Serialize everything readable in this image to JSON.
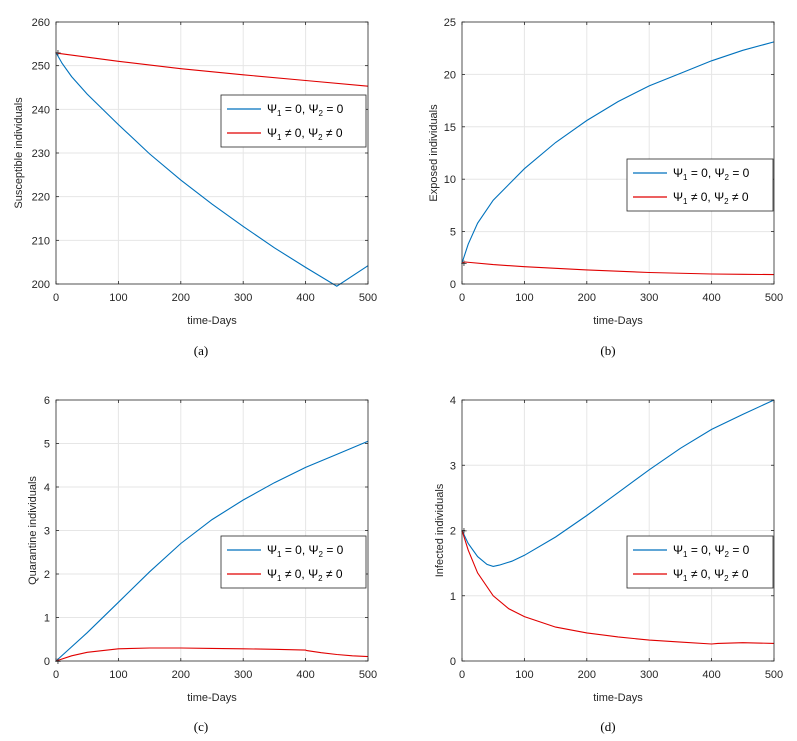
{
  "colors": {
    "series_blue": "#0072bd",
    "series_red": "#e00000",
    "grid": "#e6e6e6",
    "axis": "#262626"
  },
  "legend_entries": [
    {
      "psi": "Ψ",
      "s1": "1",
      "rel1": "= 0",
      "s2": "2",
      "rel2": "= 0",
      "color": "#0072bd"
    },
    {
      "psi": "Ψ",
      "s1": "1",
      "rel1": "≠ 0",
      "s2": "2",
      "rel2": "≠ 0",
      "color": "#e00000"
    }
  ],
  "chart_data": [
    {
      "id": "a",
      "type": "line",
      "caption": "(a)",
      "xlabel": "time-Days",
      "ylabel": "Susceptible individuals",
      "xlim": [
        0,
        500
      ],
      "ylim": [
        200,
        260
      ],
      "xticks": [
        0,
        100,
        200,
        300,
        400,
        500
      ],
      "yticks": [
        200,
        210,
        220,
        230,
        240,
        250,
        260
      ],
      "grid": true,
      "legend_position": "center-right",
      "series": [
        {
          "name": "Ψ1 = 0, Ψ2 = 0",
          "color": "#0072bd",
          "x": [
            0,
            10,
            25,
            50,
            100,
            150,
            200,
            250,
            300,
            350,
            400,
            450,
            500
          ],
          "y": [
            253,
            250.5,
            247.5,
            243.5,
            236.5,
            229.8,
            223.8,
            218.3,
            213.2,
            208.3,
            203.8,
            199.5,
            204.2
          ]
        },
        {
          "name": "Ψ1 ≠ 0, Ψ2 ≠ 0",
          "color": "#e00000",
          "x": [
            0,
            5,
            100,
            200,
            300,
            400,
            500
          ],
          "y": [
            253,
            252.8,
            251.0,
            249.3,
            247.9,
            246.6,
            245.3
          ]
        }
      ]
    },
    {
      "id": "b",
      "type": "line",
      "caption": "(b)",
      "xlabel": "time-Days",
      "ylabel": "Exposed individuals",
      "xlim": [
        0,
        500
      ],
      "ylim": [
        0,
        25
      ],
      "xticks": [
        0,
        100,
        200,
        300,
        400,
        500
      ],
      "yticks": [
        0,
        5,
        10,
        15,
        20,
        25
      ],
      "grid": true,
      "legend_position": "center-right",
      "series": [
        {
          "name": "Ψ1 = 0, Ψ2 = 0",
          "color": "#0072bd",
          "x": [
            0,
            10,
            25,
            50,
            100,
            150,
            200,
            250,
            300,
            350,
            400,
            450,
            500
          ],
          "y": [
            2,
            3.8,
            5.8,
            8.0,
            11.0,
            13.5,
            15.6,
            17.4,
            18.9,
            20.1,
            21.3,
            22.3,
            23.1
          ]
        },
        {
          "name": "Ψ1 ≠ 0, Ψ2 ≠ 0",
          "color": "#e00000",
          "x": [
            0,
            5,
            50,
            100,
            200,
            300,
            400,
            450,
            500
          ],
          "y": [
            2,
            2.1,
            1.85,
            1.65,
            1.35,
            1.1,
            0.95,
            0.93,
            0.9
          ]
        }
      ]
    },
    {
      "id": "c",
      "type": "line",
      "caption": "(c)",
      "xlabel": "time-Days",
      "ylabel": "Quarantine individuals",
      "xlim": [
        0,
        500
      ],
      "ylim": [
        0,
        6
      ],
      "xticks": [
        0,
        100,
        200,
        300,
        400,
        500
      ],
      "yticks": [
        0,
        1,
        2,
        3,
        4,
        5,
        6
      ],
      "grid": true,
      "legend_position": "center-right",
      "series": [
        {
          "name": "Ψ1 = 0, Ψ2 = 0",
          "color": "#0072bd",
          "x": [
            0,
            50,
            100,
            150,
            200,
            250,
            300,
            350,
            400,
            450,
            500
          ],
          "y": [
            0,
            0.65,
            1.35,
            2.05,
            2.7,
            3.25,
            3.7,
            4.1,
            4.45,
            4.75,
            5.05
          ]
        },
        {
          "name": "Ψ1 ≠ 0, Ψ2 ≠ 0",
          "color": "#e00000",
          "x": [
            0,
            25,
            50,
            100,
            150,
            200,
            250,
            300,
            350,
            400,
            402,
            425,
            450,
            475,
            500
          ],
          "y": [
            0,
            0.12,
            0.2,
            0.28,
            0.3,
            0.3,
            0.29,
            0.28,
            0.27,
            0.25,
            0.24,
            0.19,
            0.15,
            0.12,
            0.1
          ]
        }
      ]
    },
    {
      "id": "d",
      "type": "line",
      "caption": "(d)",
      "xlabel": "time-Days",
      "ylabel": "Infected individuals",
      "xlim": [
        0,
        500
      ],
      "ylim": [
        0,
        4
      ],
      "xticks": [
        0,
        100,
        200,
        300,
        400,
        500
      ],
      "yticks": [
        0,
        1,
        2,
        3,
        4
      ],
      "grid": true,
      "legend_position": "center-right",
      "series": [
        {
          "name": "Ψ1 = 0, Ψ2 = 0",
          "color": "#0072bd",
          "x": [
            0,
            10,
            25,
            40,
            50,
            60,
            80,
            100,
            150,
            200,
            250,
            300,
            350,
            400,
            450,
            500
          ],
          "y": [
            2,
            1.8,
            1.6,
            1.48,
            1.45,
            1.47,
            1.53,
            1.62,
            1.9,
            2.23,
            2.58,
            2.93,
            3.26,
            3.55,
            3.78,
            4.0
          ]
        },
        {
          "name": "Ψ1 ≠ 0, Ψ2 ≠ 0",
          "color": "#e00000",
          "x": [
            0,
            10,
            25,
            50,
            75,
            100,
            150,
            200,
            250,
            300,
            350,
            400,
            410,
            450,
            500
          ],
          "y": [
            2,
            1.7,
            1.35,
            1.0,
            0.8,
            0.68,
            0.52,
            0.43,
            0.37,
            0.32,
            0.29,
            0.26,
            0.27,
            0.28,
            0.27
          ]
        }
      ]
    }
  ]
}
